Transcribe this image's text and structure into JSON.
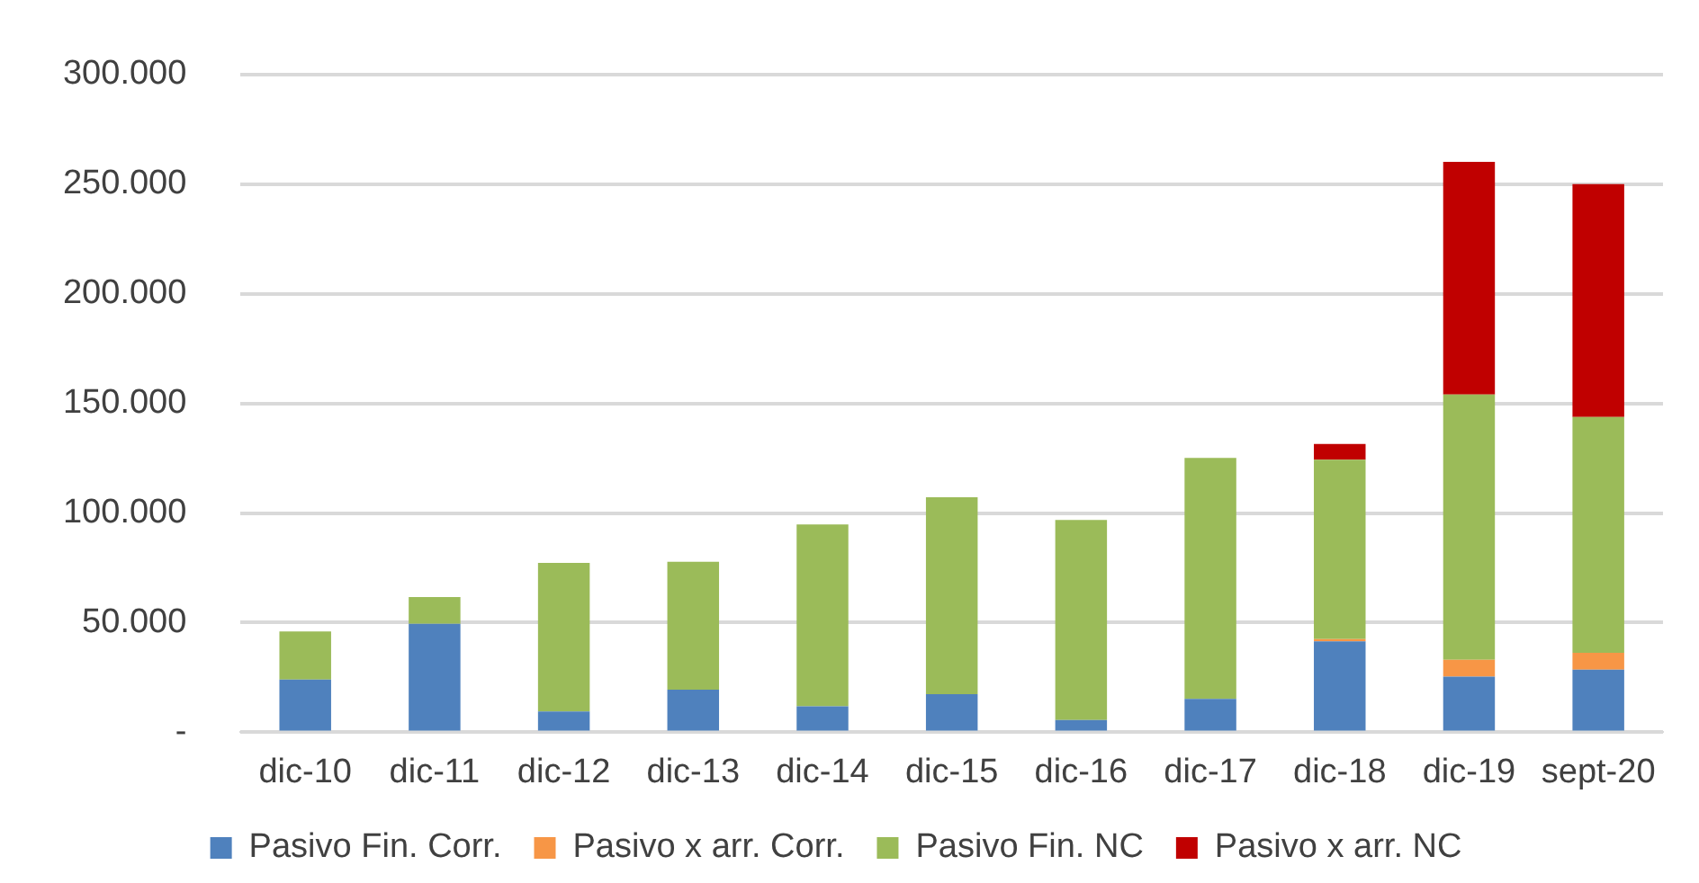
{
  "chart_data": {
    "type": "bar",
    "stacked": true,
    "categories": [
      "dic-10",
      "dic-11",
      "dic-12",
      "dic-13",
      "dic-14",
      "dic-15",
      "dic-16",
      "dic-17",
      "dic-18",
      "dic-19",
      "sept-20"
    ],
    "series": [
      {
        "name": "Pasivo Fin. Corr.",
        "color": "#4f81bd",
        "values": [
          24000,
          49500,
          9500,
          19400,
          11900,
          17400,
          5600,
          15200,
          41500,
          25400,
          28600
        ]
      },
      {
        "name": "Pasivo x arr. Corr.",
        "color": "#f79646",
        "values": [
          0,
          0,
          0,
          0,
          0,
          0,
          0,
          0,
          1000,
          7700,
          7700
        ]
      },
      {
        "name": "Pasivo Fin. NC",
        "color": "#9bbb59",
        "values": [
          22000,
          12200,
          67800,
          58400,
          82900,
          89800,
          91200,
          109900,
          81800,
          120900,
          107500
        ]
      },
      {
        "name": "Pasivo x arr. NC",
        "color": "#c00000",
        "values": [
          0,
          0,
          0,
          0,
          0,
          0,
          0,
          0,
          7200,
          106100,
          106200
        ]
      }
    ],
    "ylim": [
      0,
      300000
    ],
    "yticks": [
      {
        "value": 0,
        "label": "-"
      },
      {
        "value": 50000,
        "label": "50.000"
      },
      {
        "value": 100000,
        "label": "100.000"
      },
      {
        "value": 150000,
        "label": "150.000"
      },
      {
        "value": 200000,
        "label": "200.000"
      },
      {
        "value": 250000,
        "label": "250.000"
      },
      {
        "value": 300000,
        "label": "300.000"
      }
    ],
    "grid": "y",
    "legend": "bottom"
  }
}
